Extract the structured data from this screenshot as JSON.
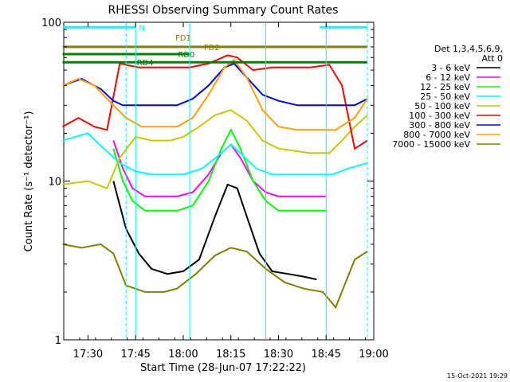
{
  "chart_data": {
    "type": "line",
    "title": "RHESSI Observing Summary Count Rates",
    "xlabel": "Start Time (28-Jun-07 17:22:22)",
    "ylabel": "Count Rate (s⁻¹ detector⁻¹)",
    "y_scale": "log",
    "ylim": [
      1,
      100
    ],
    "xlim": [
      "17:22:22",
      "19:00"
    ],
    "x_ticks": [
      "17:30",
      "17:45",
      "18:00",
      "18:15",
      "18:30",
      "18:45",
      "19:00"
    ],
    "y_ticks": [
      "1",
      "10",
      "100"
    ],
    "grid": false,
    "timestamp": "15-Oct-2021 19:29",
    "legend": {
      "placement": "right",
      "header": [
        "Det 1,3,4,5,6,9,",
        "Att 0"
      ]
    },
    "series": [
      {
        "name": "3 - 6 keV",
        "color": "#000000",
        "x": [
          "17:38",
          "17:42",
          "17:46",
          "17:50",
          "17:55",
          "18:00",
          "18:05",
          "18:10",
          "18:14",
          "18:17",
          "18:20",
          "18:24",
          "18:28",
          "18:33",
          "18:38",
          "18:42"
        ],
        "y": [
          10,
          5,
          3.5,
          2.8,
          2.6,
          2.7,
          3.2,
          6,
          9.5,
          9,
          6,
          3.5,
          2.7,
          2.6,
          2.5,
          2.4
        ]
      },
      {
        "name": "6 - 12 keV",
        "color": "#ff00ff",
        "x": [
          "17:38",
          "17:41",
          "17:44",
          "17:48",
          "17:53",
          "17:58",
          "18:03",
          "18:08",
          "18:12",
          "18:15",
          "18:18",
          "18:22",
          "18:26",
          "18:30",
          "18:35",
          "18:41",
          "18:45"
        ],
        "y": [
          18,
          12,
          9,
          8,
          8,
          8,
          8.5,
          11,
          15,
          17,
          14,
          10,
          8.5,
          8,
          8,
          8,
          8
        ]
      },
      {
        "name": "12 - 25 keV",
        "color": "#00ff00",
        "x": [
          "17:38",
          "17:41",
          "17:44",
          "17:48",
          "17:53",
          "17:58",
          "18:03",
          "18:08",
          "18:12",
          "18:15",
          "18:18",
          "18:22",
          "18:26",
          "18:30",
          "18:35",
          "18:41",
          "18:45"
        ],
        "y": [
          16,
          10,
          7.5,
          6.5,
          6.5,
          6.5,
          7,
          10,
          16,
          21,
          16,
          10,
          7.5,
          6.5,
          6.5,
          6.5,
          6.5
        ]
      },
      {
        "name": "25 - 50 keV",
        "color": "#00ffff",
        "x": [
          "17:22",
          "17:30",
          "17:35",
          "17:40",
          "17:45",
          "17:50",
          "18:00",
          "18:06",
          "18:12",
          "18:15",
          "18:18",
          "18:23",
          "18:28",
          "18:33",
          "18:40",
          "18:47",
          "18:52",
          "18:58"
        ],
        "y": [
          18,
          20,
          16,
          13,
          11.5,
          11,
          11,
          12,
          15,
          17,
          15,
          12,
          11,
          11,
          11,
          11,
          12,
          13
        ]
      },
      {
        "name": "50 - 100 keV",
        "color": "#c8c800",
        "x": [
          "17:22",
          "17:30",
          "17:36",
          "17:40",
          "17:45",
          "17:50",
          "17:56",
          "18:00",
          "18:05",
          "18:10",
          "18:15",
          "18:20",
          "18:25",
          "18:30",
          "18:35",
          "18:40",
          "18:46",
          "18:50",
          "18:54",
          "18:58"
        ],
        "y": [
          9.5,
          10,
          9,
          14,
          19,
          18,
          18,
          19,
          22,
          26,
          28,
          24,
          18,
          16,
          15.5,
          15,
          15,
          18,
          22,
          26
        ]
      },
      {
        "name": "100 - 300 keV",
        "color": "#ff0000",
        "x": [
          "17:22",
          "17:27",
          "17:32",
          "17:36",
          "17:40",
          "17:46",
          "17:52",
          "17:58",
          "18:02",
          "18:08",
          "18:14",
          "18:17",
          "18:22",
          "18:28",
          "18:33",
          "18:40",
          "18:46",
          "18:50",
          "18:54",
          "18:58"
        ],
        "y": [
          22,
          25,
          22,
          21,
          55,
          52,
          52,
          52,
          52,
          55,
          62,
          60,
          50,
          52,
          52,
          52,
          54,
          40,
          16,
          18
        ]
      },
      {
        "name": "300 - 800 keV",
        "color": "#0000ff",
        "x": [
          "17:22",
          "17:28",
          "17:34",
          "17:38",
          "17:41",
          "17:46",
          "17:52",
          "17:58",
          "18:03",
          "18:08",
          "18:13",
          "18:16",
          "18:20",
          "18:25",
          "18:30",
          "18:36",
          "18:42",
          "18:48",
          "18:54",
          "18:58"
        ],
        "y": [
          40,
          44,
          38,
          32,
          30,
          30,
          30,
          30,
          33,
          40,
          52,
          55,
          45,
          35,
          32,
          30,
          30,
          30,
          30,
          33
        ]
      },
      {
        "name": "800 - 7000 keV",
        "color": "#ffa000",
        "x": [
          "17:22",
          "17:27",
          "17:32",
          "17:38",
          "17:42",
          "17:47",
          "17:53",
          "17:58",
          "18:03",
          "18:08",
          "18:13",
          "18:16",
          "18:20",
          "18:25",
          "18:30",
          "18:36",
          "18:42",
          "18:48",
          "18:54",
          "18:58"
        ],
        "y": [
          40,
          44,
          40,
          30,
          25,
          22,
          22,
          22,
          25,
          35,
          52,
          58,
          45,
          28,
          22,
          21,
          21,
          21,
          25,
          33
        ]
      },
      {
        "name": "7000 - 15000 keV",
        "color": "#808000",
        "x": [
          "17:22",
          "17:28",
          "17:34",
          "17:38",
          "17:42",
          "17:48",
          "17:54",
          "17:58",
          "18:04",
          "18:10",
          "18:15",
          "18:20",
          "18:26",
          "18:32",
          "18:38",
          "18:44",
          "18:48",
          "18:54",
          "18:58"
        ],
        "y": [
          4,
          3.8,
          4,
          3.5,
          2.2,
          2,
          2,
          2.1,
          2.6,
          3.4,
          3.8,
          3.6,
          2.8,
          2.3,
          2.1,
          2,
          1.6,
          3.2,
          3.6
        ]
      }
    ],
    "annotations": [
      {
        "label": "N",
        "color": "#00ffff",
        "x_start": "17:22",
        "x_end": "17:45",
        "y": 93
      },
      {
        "label": "",
        "color": "#00ffff",
        "x_start": "18:43",
        "x_end": "18:58",
        "y": 93
      },
      {
        "label": "FD1",
        "color": "#808000",
        "x_start": "17:22",
        "x_end": "18:58",
        "y": 70
      },
      {
        "label": "FD2",
        "color": "#808000",
        "x_start": "",
        "x_end": "",
        "y": 70
      },
      {
        "label": "RD0",
        "color": "#008000",
        "x_start": "17:22",
        "x_end": "18:02",
        "y": 63
      },
      {
        "label": "RD4",
        "color": "#008000",
        "x_start": "17:22",
        "x_end": "18:58",
        "y": 56
      }
    ],
    "vlines": {
      "dashed_cyan": [
        "17:42",
        "18:58"
      ],
      "solid": [
        "17:45",
        "18:02",
        "18:26",
        "18:45"
      ]
    }
  }
}
